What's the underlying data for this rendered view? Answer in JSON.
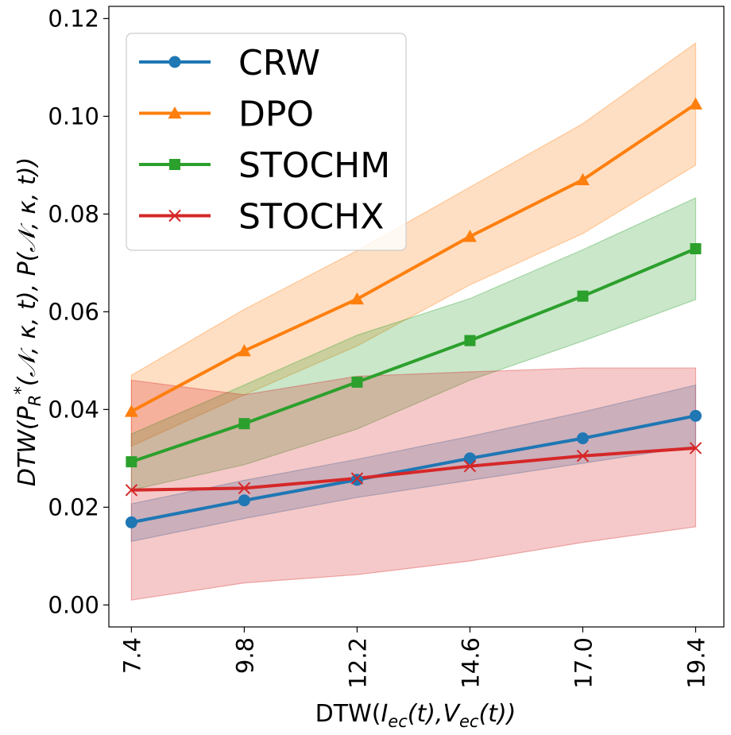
{
  "chart_data": {
    "type": "line",
    "title": "",
    "xlabel": "DTW(I_ec(t),V_ec(t))",
    "ylabel": "DTW(P_R*(N,κ,t), P(N,κ,t))",
    "xlabel_parts": {
      "pre": "DTW(",
      "i": "I",
      "i_sub": "ec",
      "mid1": "(t),",
      "v": "V",
      "v_sub": "ec",
      "post": "(t))"
    },
    "ylabel_parts": {
      "dtw": "DTW",
      "p1": "P",
      "p1_sub": "R",
      "p1_sup": "*",
      "args": "(𝒩, κ, t), ",
      "p2": "P",
      "args2": "(𝒩, κ, t))",
      "open": "("
    },
    "x": [
      7.4,
      9.8,
      12.2,
      14.6,
      17.0,
      19.4
    ],
    "x_tick_labels": [
      "7.4",
      "9.8",
      "12.2",
      "14.6",
      "17.0",
      "19.4"
    ],
    "ylim": [
      -0.0045,
      0.1225
    ],
    "y_ticks": [
      0.0,
      0.02,
      0.04,
      0.06,
      0.08,
      0.1,
      0.12
    ],
    "y_tick_labels": [
      "0.00",
      "0.02",
      "0.04",
      "0.06",
      "0.08",
      "0.10",
      "0.12"
    ],
    "grid": false,
    "legend_position": "top-left",
    "series": [
      {
        "name": "CRW",
        "color": "#1f77b4",
        "marker": "circle",
        "values": [
          0.0169,
          0.0214,
          0.0256,
          0.03,
          0.0341,
          0.0387
        ],
        "lower": [
          0.013,
          0.0177,
          0.022,
          0.0255,
          0.029,
          0.0325
        ],
        "upper": [
          0.0207,
          0.0255,
          0.0298,
          0.0345,
          0.0395,
          0.045
        ]
      },
      {
        "name": "DPO",
        "color": "#ff7f0e",
        "marker": "triangle",
        "values": [
          0.0396,
          0.052,
          0.0626,
          0.0754,
          0.087,
          0.1025
        ],
        "lower": [
          0.0325,
          0.043,
          0.053,
          0.0655,
          0.076,
          0.09
        ],
        "upper": [
          0.047,
          0.0605,
          0.0725,
          0.0855,
          0.0985,
          0.115
        ]
      },
      {
        "name": "STOCHM",
        "color": "#2ca02c",
        "marker": "square",
        "values": [
          0.0293,
          0.0371,
          0.0456,
          0.0541,
          0.0632,
          0.0729
        ],
        "lower": [
          0.0235,
          0.0287,
          0.036,
          0.046,
          0.054,
          0.0625
        ],
        "upper": [
          0.035,
          0.045,
          0.0552,
          0.0627,
          0.0727,
          0.0833
        ]
      },
      {
        "name": "STOCHX",
        "color": "#d62728",
        "marker": "x",
        "values": [
          0.0235,
          0.0239,
          0.0259,
          0.0284,
          0.0305,
          0.0321
        ],
        "lower": [
          0.001,
          0.0045,
          0.0062,
          0.009,
          0.0128,
          0.016
        ],
        "upper": [
          0.046,
          0.043,
          0.0468,
          0.0477,
          0.0485,
          0.0485
        ]
      }
    ]
  }
}
